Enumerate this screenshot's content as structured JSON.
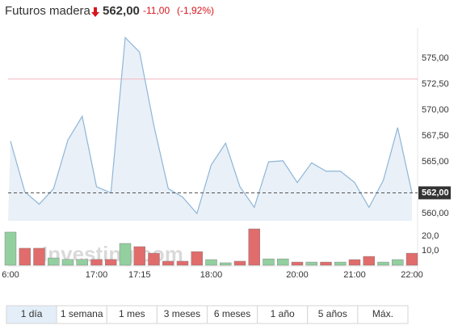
{
  "header": {
    "title": "Futuros madera",
    "price": "562,00",
    "change": "-11,00",
    "change_pct": "(-1,92%)"
  },
  "chart_data": [
    {
      "type": "line",
      "color": "#8fb6d8",
      "categories": [
        "6:00",
        null,
        null,
        null,
        null,
        null,
        "17:00",
        null,
        null,
        "17:15",
        null,
        null,
        null,
        null,
        "18:00",
        null,
        null,
        null,
        null,
        null,
        "20:00",
        null,
        null,
        null,
        "21:00",
        null,
        null,
        null,
        "22:00"
      ],
      "values": [
        567.0,
        562.1,
        560.9,
        562.4,
        567.1,
        569.4,
        562.6,
        562.0,
        577.0,
        575.6,
        568.5,
        562.4,
        561.6,
        560.0,
        564.7,
        566.8,
        562.6,
        560.6,
        565.0,
        565.1,
        563.0,
        564.9,
        564.1,
        564.1,
        563.0,
        560.6,
        563.2,
        568.3,
        562.0
      ],
      "ylim": [
        559.3,
        577.9
      ],
      "yticks": [
        {
          "value": 560,
          "label": "560,00"
        },
        {
          "value": 565,
          "label": "565,00"
        },
        {
          "value": 567.5,
          "label": "567,50"
        },
        {
          "value": 570,
          "label": "570,00"
        },
        {
          "value": 572.5,
          "label": "572,50"
        },
        {
          "value": 575,
          "label": "575,00"
        }
      ],
      "current": {
        "value": 562,
        "label": "562,00"
      },
      "prev_close": 573
    },
    {
      "type": "bar",
      "values": [
        22.8,
        11.7,
        11.7,
        5,
        4,
        4,
        4,
        4,
        15,
        12.8,
        8.3,
        2.8,
        2.8,
        9.4,
        3.9,
        1.7,
        2.8,
        25,
        4.4,
        4.4,
        2.2,
        2.2,
        2.2,
        2.2,
        3.9,
        6.1,
        2.2,
        3.9,
        8.3
      ],
      "colors": [
        "#93cf9f",
        "#e06c6c",
        "#e06c6c",
        "#93cf9f",
        "#93cf9f",
        "#93cf9f",
        "#e06c6c",
        "#e06c6c",
        "#93cf9f",
        "#e06c6c",
        "#e06c6c",
        "#e06c6c",
        "#e06c6c",
        "#e06c6c",
        "#93cf9f",
        "#93cf9f",
        "#e06c6c",
        "#e06c6c",
        "#93cf9f",
        "#93cf9f",
        "#e06c6c",
        "#93cf9f",
        "#e06c6c",
        "#93cf9f",
        "#e06c6c",
        "#e06c6c",
        "#93cf9f",
        "#93cf9f",
        "#e06c6c"
      ],
      "ylim": [
        0,
        25
      ],
      "yticks": [
        {
          "value": 10,
          "label": "10,0"
        },
        {
          "value": 20,
          "label": "20,0"
        }
      ]
    }
  ],
  "watermark": "Investing.com",
  "ranges": {
    "items": [
      "1 día",
      "1 semana",
      "1 mes",
      "3 meses",
      "6 meses",
      "1 año",
      "5 años",
      "Máx."
    ],
    "selected": 0
  }
}
